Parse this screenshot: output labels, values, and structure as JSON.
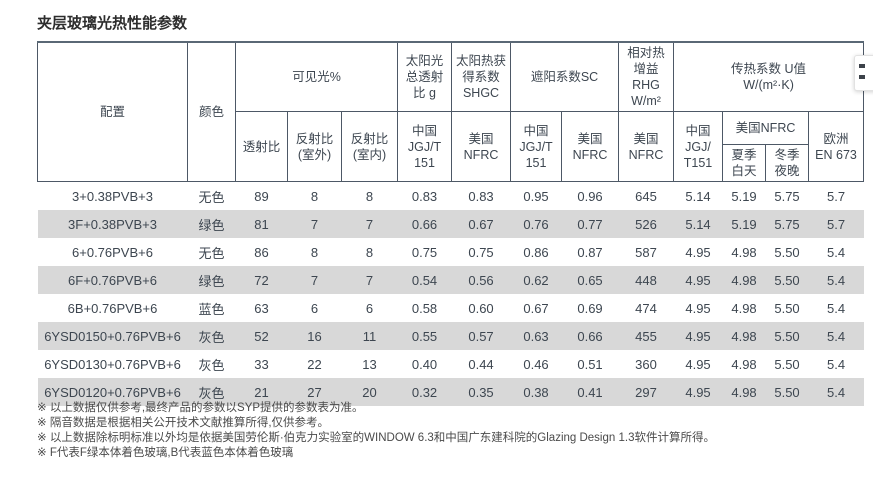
{
  "page": {
    "title": "夹层玻璃光热性能参数"
  },
  "colors": {
    "stripe": "#d8d8d8",
    "table_border": "#4d5866",
    "text": "#3d4650"
  },
  "table": {
    "header": {
      "config": "配置",
      "color": "颜色",
      "visible_group": "可见光%",
      "trans": "透射比",
      "refl_out": [
        "反射比",
        "(室外)"
      ],
      "refl_in": [
        "反射比",
        "(室内)"
      ],
      "g_group": [
        "太阳光",
        "总透射",
        "比 g"
      ],
      "g_std": [
        "中国",
        "JGJ/T",
        "151"
      ],
      "shgc_group": [
        "太阳热获",
        "得系数",
        "SHGC"
      ],
      "shgc_std": [
        "美国",
        "NFRC"
      ],
      "sc_group": "遮阳系数SC",
      "sc_std_cn": [
        "中国",
        "JGJ/T",
        "151"
      ],
      "sc_std_us": [
        "美国",
        "NFRC"
      ],
      "rhg_group": [
        "相对热",
        "增益RHG",
        "W/m²"
      ],
      "rhg_std": [
        "美国",
        "NFRC"
      ],
      "u_group": [
        "传热系数 U值",
        "W/(m²·K)"
      ],
      "u_std_cn": [
        "中国",
        "JGJ/",
        "T151"
      ],
      "u_std_us": "美国NFRC",
      "u_summer": [
        "夏季",
        "白天"
      ],
      "u_winter": [
        "冬季",
        "夜晚"
      ],
      "u_eu": [
        "欧洲",
        "EN 673"
      ]
    },
    "rows": [
      [
        "3+0.38PVB+3",
        "无色",
        "89",
        "8",
        "8",
        "0.83",
        "0.83",
        "0.95",
        "0.96",
        "645",
        "5.14",
        "5.19",
        "5.75",
        "5.7"
      ],
      [
        "3F+0.38PVB+3",
        "绿色",
        "81",
        "7",
        "7",
        "0.66",
        "0.67",
        "0.76",
        "0.77",
        "526",
        "5.14",
        "5.19",
        "5.75",
        "5.7"
      ],
      [
        "6+0.76PVB+6",
        "无色",
        "86",
        "8",
        "8",
        "0.75",
        "0.75",
        "0.86",
        "0.87",
        "587",
        "4.95",
        "4.98",
        "5.50",
        "5.4"
      ],
      [
        "6F+0.76PVB+6",
        "绿色",
        "72",
        "7",
        "7",
        "0.54",
        "0.56",
        "0.62",
        "0.65",
        "448",
        "4.95",
        "4.98",
        "5.50",
        "5.4"
      ],
      [
        "6B+0.76PVB+6",
        "蓝色",
        "63",
        "6",
        "6",
        "0.58",
        "0.60",
        "0.67",
        "0.69",
        "474",
        "4.95",
        "4.98",
        "5.50",
        "5.4"
      ],
      [
        "6YSD0150+0.76PVB+6",
        "灰色",
        "52",
        "16",
        "11",
        "0.55",
        "0.57",
        "0.63",
        "0.66",
        "455",
        "4.95",
        "4.98",
        "5.50",
        "5.4"
      ],
      [
        "6YSD0130+0.76PVB+6",
        "灰色",
        "33",
        "22",
        "13",
        "0.40",
        "0.44",
        "0.46",
        "0.51",
        "360",
        "4.95",
        "4.98",
        "5.50",
        "5.4"
      ],
      [
        "6YSD0120+0.76PVB+6",
        "灰色",
        "21",
        "27",
        "20",
        "0.32",
        "0.35",
        "0.38",
        "0.41",
        "297",
        "4.95",
        "4.98",
        "5.50",
        "5.4"
      ]
    ]
  },
  "footnotes": [
    "※ 以上数据仅供参考,最终产品的参数以SYP提供的参数表为准。",
    "※ 隔音数据是根据相关公开技术文献推算所得,仅供参考。",
    "※ 以上数据除标明标准以外均是依据美国劳伦斯·伯克力实验室的WINDOW 6.3和中国广东建科院的Glazing Design 1.3软件计算所得。",
    "※ F代表F绿本体着色玻璃,B代表蓝色本体着色玻璃"
  ],
  "floating_widget": {
    "icons": [
      "dash-icon",
      "dash-icon"
    ]
  }
}
